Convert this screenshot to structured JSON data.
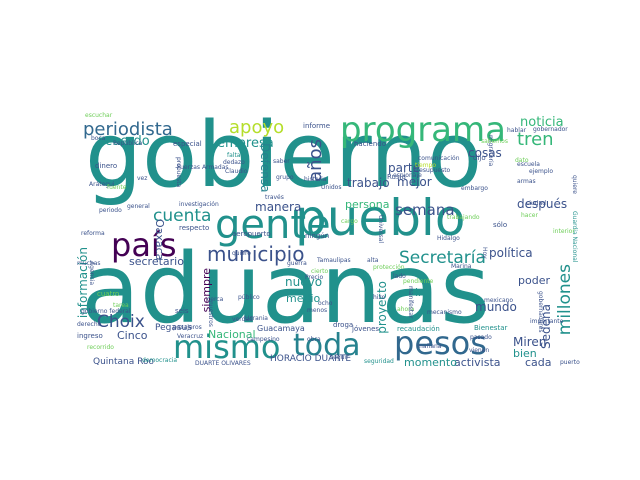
{
  "colors": {
    "background": "#ffffff",
    "palette": {
      "purple": "#440154",
      "indigo": "#3b528b",
      "blue": "#31688e",
      "slate": "#414487",
      "teal": "#21918c",
      "cyan": "#26828e",
      "green": "#35b779",
      "lime": "#6ece58",
      "yellow": "#b5de2b"
    }
  },
  "words": [
    {
      "text": "aduanas",
      "color": "teal"
    },
    {
      "text": "gobierno",
      "color": "teal"
    },
    {
      "text": "pueblo",
      "color": "teal"
    },
    {
      "text": "gente",
      "color": "teal"
    },
    {
      "text": "programa",
      "color": "green"
    },
    {
      "text": "país",
      "color": "purple"
    },
    {
      "text": "mismo",
      "color": "teal"
    },
    {
      "text": "toda",
      "color": "cyan"
    },
    {
      "text": "pesos",
      "color": "blue"
    },
    {
      "text": "municipio",
      "color": "indigo"
    },
    {
      "text": "periodista",
      "color": "blue"
    },
    {
      "text": "cuenta",
      "color": "teal"
    },
    {
      "text": "Secretaría",
      "color": "teal"
    },
    {
      "text": "semana",
      "color": "indigo"
    },
    {
      "text": "millones",
      "color": "teal"
    },
    {
      "text": "años",
      "color": "indigo"
    },
    {
      "text": "apoyo",
      "color": "yellow"
    },
    {
      "text": "tren",
      "color": "green"
    },
    {
      "text": "Choix",
      "color": "indigo"
    },
    {
      "text": "noticia",
      "color": "green"
    },
    {
      "text": "acuerdo",
      "color": "teal"
    },
    {
      "text": "empresa",
      "color": "teal"
    },
    {
      "text": "cosas",
      "color": "indigo"
    },
    {
      "text": "parte",
      "color": "indigo"
    },
    {
      "text": "mejor",
      "color": "indigo"
    },
    {
      "text": "trabajo",
      "color": "indigo"
    },
    {
      "text": "persona",
      "color": "green"
    },
    {
      "text": "Defensa",
      "color": "cyan"
    },
    {
      "text": "manera",
      "color": "indigo"
    },
    {
      "text": "después",
      "color": "indigo"
    },
    {
      "text": "política",
      "color": "indigo"
    },
    {
      "text": "Oaxaca",
      "color": "indigo"
    },
    {
      "text": "secretario",
      "color": "indigo"
    },
    {
      "text": "información",
      "color": "teal"
    },
    {
      "text": "nuevo",
      "color": "teal"
    },
    {
      "text": "siempre",
      "color": "purple"
    },
    {
      "text": "medio",
      "color": "teal"
    },
    {
      "text": "proyecto",
      "color": "teal"
    },
    {
      "text": "Sedena",
      "color": "indigo"
    },
    {
      "text": "poder",
      "color": "indigo"
    },
    {
      "text": "ir",
      "color": "teal"
    },
    {
      "text": "mundo",
      "color": "indigo"
    },
    {
      "text": "Miren",
      "color": "indigo"
    },
    {
      "text": "bien",
      "color": "teal"
    },
    {
      "text": "cada",
      "color": "indigo"
    },
    {
      "text": "activista",
      "color": "indigo"
    },
    {
      "text": "momento",
      "color": "teal"
    },
    {
      "text": "HORACIO DUARTE",
      "color": "indigo"
    },
    {
      "text": "Nacional",
      "color": "green"
    },
    {
      "text": "Cinco",
      "color": "indigo"
    },
    {
      "text": "Quintana Roo",
      "color": "indigo"
    },
    {
      "text": "Pegasus",
      "color": "indigo"
    },
    {
      "text": "Guacamaya",
      "color": "indigo"
    },
    {
      "text": "informe",
      "color": "indigo"
    },
    {
      "text": "especial",
      "color": "indigo"
    },
    {
      "text": "haciendo",
      "color": "indigo"
    },
    {
      "text": "gobernador",
      "color": "indigo"
    },
    {
      "text": "dinero",
      "color": "indigo"
    },
    {
      "text": "general",
      "color": "indigo"
    },
    {
      "text": "reforma",
      "color": "indigo"
    },
    {
      "text": "respecto",
      "color": "indigo"
    },
    {
      "text": "Tamaulipas",
      "color": "indigo"
    },
    {
      "text": "ningún",
      "color": "indigo"
    },
    {
      "text": "aeropuerto",
      "color": "indigo"
    },
    {
      "text": "Rusia",
      "color": "indigo"
    },
    {
      "text": "Unidos",
      "color": "indigo"
    },
    {
      "text": "historia",
      "color": "indigo"
    },
    {
      "text": "recaudación",
      "color": "teal"
    },
    {
      "text": "Bienestar",
      "color": "teal"
    },
    {
      "text": "jóvenes",
      "color": "indigo"
    },
    {
      "text": "droga",
      "color": "indigo"
    },
    {
      "text": "seis",
      "color": "indigo"
    },
    {
      "text": "ingreso",
      "color": "indigo"
    },
    {
      "text": "Marina",
      "color": "indigo"
    },
    {
      "text": "Hidalgo",
      "color": "indigo"
    },
    {
      "text": "sólo",
      "color": "indigo"
    },
    {
      "text": "dijo",
      "color": "indigo"
    },
    {
      "text": "ejemplo",
      "color": "indigo"
    },
    {
      "text": "pasajeros",
      "color": "indigo"
    },
    {
      "text": "falta",
      "color": "teal"
    },
    {
      "text": "Claudio",
      "color": "indigo"
    },
    {
      "text": "DUARTE OLIVARES",
      "color": "indigo"
    },
    {
      "text": "Arátegui",
      "color": "indigo"
    },
    {
      "text": "derecho",
      "color": "indigo"
    },
    {
      "text": "periodo",
      "color": "indigo"
    },
    {
      "text": "cuatro",
      "color": "lime"
    },
    {
      "text": "investigación",
      "color": "indigo"
    },
    {
      "text": "Fuerzas Armadas",
      "color": "indigo"
    },
    {
      "text": "República",
      "color": "indigo"
    },
    {
      "text": "comunicación",
      "color": "indigo"
    },
    {
      "text": "presupuesto",
      "color": "indigo"
    },
    {
      "text": "embargo",
      "color": "indigo"
    },
    {
      "text": "mecanismo",
      "color": "indigo"
    },
    {
      "text": "verdad",
      "color": "indigo"
    },
    {
      "text": "público",
      "color": "indigo"
    },
    {
      "text": "cerca",
      "color": "indigo"
    },
    {
      "text": "hizo",
      "color": "indigo"
    },
    {
      "text": "menos",
      "color": "indigo"
    },
    {
      "text": "ocho",
      "color": "indigo"
    },
    {
      "text": "mexicano",
      "color": "indigo"
    },
    {
      "text": "importante",
      "color": "indigo"
    },
    {
      "text": "quiere",
      "color": "indigo"
    },
    {
      "text": "seguir",
      "color": "indigo"
    },
    {
      "text": "gobierno federal",
      "color": "indigo"
    },
    {
      "text": "democracia",
      "color": "teal"
    },
    {
      "text": "campesino",
      "color": "indigo"
    },
    {
      "text": "Ucrania",
      "color": "indigo"
    },
    {
      "text": "seguridad",
      "color": "teal"
    },
    {
      "text": "través",
      "color": "indigo"
    },
    {
      "text": "escuela",
      "color": "indigo"
    },
    {
      "text": "grupo",
      "color": "indigo"
    },
    {
      "text": "vez",
      "color": "indigo"
    },
    {
      "text": "dedazo",
      "color": "indigo"
    },
    {
      "text": "boca",
      "color": "indigo"
    },
    {
      "text": "escuchar",
      "color": "lime"
    },
    {
      "text": "alta",
      "color": "indigo"
    },
    {
      "text": "hablar",
      "color": "indigo"
    },
    {
      "text": "saber",
      "color": "indigo"
    },
    {
      "text": "guerra",
      "color": "indigo"
    },
    {
      "text": "Hoy",
      "color": "indigo"
    },
    {
      "text": "pasado",
      "color": "indigo"
    },
    {
      "text": "mañana",
      "color": "indigo"
    },
    {
      "text": "Precio",
      "color": "indigo"
    },
    {
      "text": "lado",
      "color": "indigo"
    },
    {
      "text": "quiero",
      "color": "indigo"
    },
    {
      "text": "tarea",
      "color": "lime"
    },
    {
      "text": "ahora",
      "color": "lime"
    },
    {
      "text": "protección",
      "color": "lime"
    },
    {
      "text": "espionaje",
      "color": "indigo"
    },
    {
      "text": "trabajando",
      "color": "lime"
    },
    {
      "text": "cierto",
      "color": "lime"
    },
    {
      "text": "Universal",
      "color": "indigo"
    },
    {
      "text": "migratoria",
      "color": "indigo"
    },
    {
      "text": "gobernadores",
      "color": "indigo"
    },
    {
      "text": "propuesta",
      "color": "indigo"
    },
    {
      "text": "fuente",
      "color": "lime"
    },
    {
      "text": "Veracruz",
      "color": "indigo"
    },
    {
      "text": "nuestros",
      "color": "indigo"
    },
    {
      "text": "pendiente",
      "color": "lime"
    },
    {
      "text": "muchas",
      "color": "indigo"
    },
    {
      "text": "Agencia",
      "color": "indigo"
    },
    {
      "text": "obra",
      "color": "indigo"
    },
    {
      "text": "vienen",
      "color": "indigo"
    },
    {
      "text": "puerto",
      "color": "indigo"
    },
    {
      "text": "hacer",
      "color": "lime"
    },
    {
      "text": "Guardia Nacional",
      "color": "teal"
    },
    {
      "text": "armas",
      "color": "indigo"
    },
    {
      "text": "ciudad",
      "color": "indigo"
    },
    {
      "text": "tiempo",
      "color": "yellow"
    },
    {
      "text": "dato",
      "color": "lime"
    },
    {
      "text": "sabemos",
      "color": "lime"
    },
    {
      "text": "manifestar",
      "color": "indigo"
    },
    {
      "text": "recorrido",
      "color": "lime"
    },
    {
      "text": "cargo",
      "color": "lime"
    },
    {
      "text": "interior",
      "color": "lime"
    }
  ]
}
